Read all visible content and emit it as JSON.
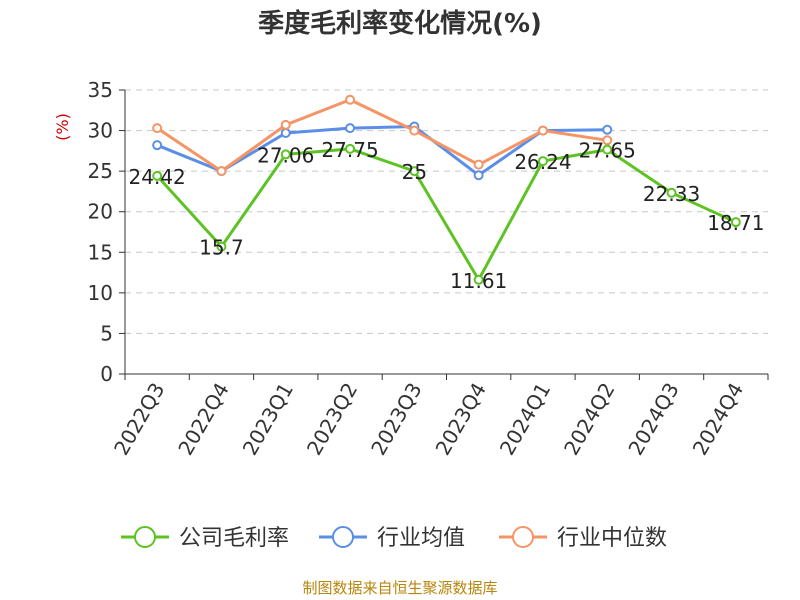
{
  "chart_data": {
    "type": "line",
    "title": "季度毛利率变化情况(%)",
    "ylabel": "(%)",
    "xlabel": "",
    "ylim": [
      0,
      35
    ],
    "yticks": [
      0,
      5,
      10,
      15,
      20,
      25,
      30,
      35
    ],
    "grid": true,
    "legend_position": "bottom",
    "categories": [
      "2022Q3",
      "2022Q4",
      "2023Q1",
      "2023Q2",
      "2023Q3",
      "2023Q4",
      "2024Q1",
      "2024Q2",
      "2024Q3",
      "2024Q4"
    ],
    "series": [
      {
        "name": "公司毛利率",
        "color": "#5cc323",
        "values": [
          24.42,
          15.7,
          27.06,
          27.75,
          25,
          11.61,
          26.24,
          27.65,
          22.33,
          18.71
        ],
        "labels": [
          "24.42",
          "15.7",
          "27.06",
          "27.75",
          "25",
          "11.61",
          "26.24",
          "27.65",
          "22.33",
          "18.71"
        ]
      },
      {
        "name": "行业均值",
        "color": "#5b8ee6",
        "values": [
          28.2,
          25.0,
          29.7,
          30.3,
          30.5,
          24.5,
          30.0,
          30.1,
          null,
          null
        ]
      },
      {
        "name": "行业中位数",
        "color": "#f59464",
        "values": [
          30.3,
          25.0,
          30.7,
          33.8,
          30.0,
          25.8,
          30.0,
          28.8,
          null,
          null
        ]
      }
    ],
    "source": "制图数据来自恒生聚源数据库"
  }
}
